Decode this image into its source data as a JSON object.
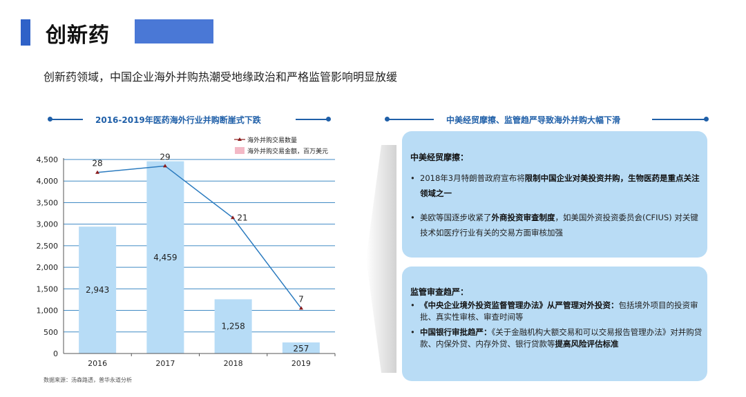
{
  "page": {
    "title": "创新药",
    "subtitle": "创新药领域，中国企业海外并购热潮受地缘政治和严格监管影响明显放缓"
  },
  "left_section": {
    "heading": "2016-2019年医药海外行业并购断崖式下跌",
    "source": "数据来源：汤森路透，普华永道分析"
  },
  "right_section": {
    "heading": "中美经贸摩擦、监管趋严导致海外并购大幅下滑",
    "panel1": {
      "title": "中美经贸摩擦：",
      "items": [
        {
          "pre": "2018年3月特朗普政府宣布将",
          "bold": "限制中国企业对美投资并购，生物医药是重点关注领域之一",
          "post": ""
        },
        {
          "pre": "美欧等国逐步收紧了",
          "bold": "外商投资审查制度",
          "post": "，如美国外资投资委员会(CFIUS) 对关键技术如医疗行业有关的交易方面审核加强"
        }
      ]
    },
    "panel2": {
      "title": "监管审查趋严：",
      "items": [
        {
          "pre": "",
          "bold": "《中央企业境外投资监督管理办法》从严管理对外投资：",
          "post": "包括境外项目的投资审批、真实性审核、审查时间等"
        },
        {
          "pre": "",
          "bold": "中国银行审批趋严：",
          "post": "《关于金融机构大额交易和可以交易报告管理办法》对并购贷款、内保外贷、内存外贷、银行贷款等",
          "bold2": "提高风险评估标准"
        }
      ]
    }
  },
  "colors": {
    "bar": "#b7dcf6",
    "line": "#2b7bbf",
    "line_marker": "#8b1a1a",
    "accent": "#1f5fa8",
    "panel": "#b9dcf5",
    "title_bar": "#2f62c8"
  },
  "chart_data": {
    "type": "bar",
    "categories": [
      "2016",
      "2017",
      "2018",
      "2019"
    ],
    "series": [
      {
        "name": "海外并购交易金额，百万美元",
        "type": "bar",
        "values": [
          2943,
          4459,
          1258,
          257
        ],
        "labels": [
          "2,943",
          "4,459",
          "1,258",
          "257"
        ]
      },
      {
        "name": "海外并购交易数量",
        "type": "line",
        "values": [
          28,
          29,
          21,
          7
        ],
        "labels": [
          "28",
          "29",
          "21",
          "7"
        ]
      }
    ],
    "y_ticks": [
      "0",
      "500",
      "1,000",
      "1,500",
      "2,000",
      "2,500",
      "3,000",
      "3,500",
      "4,000",
      "4,500"
    ],
    "ylim": [
      0,
      4500
    ],
    "secondary_ylim": [
      0,
      30
    ],
    "grid": true,
    "legend_position": "top-right"
  }
}
